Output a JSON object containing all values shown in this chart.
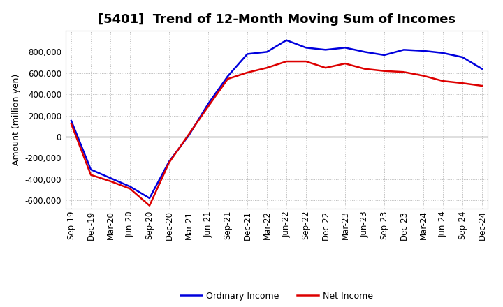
{
  "title": "[5401]  Trend of 12-Month Moving Sum of Incomes",
  "ylabel": "Amount (million yen)",
  "background_color": "#ffffff",
  "grid_color": "#bbbbbb",
  "x_labels": [
    "Sep-19",
    "Dec-19",
    "Mar-20",
    "Jun-20",
    "Sep-20",
    "Dec-20",
    "Mar-21",
    "Jun-21",
    "Sep-21",
    "Dec-21",
    "Mar-22",
    "Jun-22",
    "Sep-22",
    "Dec-22",
    "Mar-23",
    "Jun-23",
    "Sep-23",
    "Dec-23",
    "Mar-24",
    "Jun-24",
    "Sep-24",
    "Dec-24"
  ],
  "ordinary_income": [
    150000,
    -310000,
    -390000,
    -470000,
    -580000,
    -235000,
    10000,
    310000,
    570000,
    780000,
    800000,
    910000,
    840000,
    820000,
    840000,
    800000,
    770000,
    820000,
    810000,
    790000,
    750000,
    640000
  ],
  "net_income": [
    120000,
    -360000,
    -420000,
    -490000,
    -650000,
    -245000,
    20000,
    285000,
    545000,
    605000,
    650000,
    710000,
    710000,
    650000,
    690000,
    640000,
    620000,
    610000,
    575000,
    525000,
    505000,
    480000
  ],
  "ordinary_income_color": "#0000dd",
  "net_income_color": "#dd0000",
  "ylim": [
    -680000,
    1000000
  ],
  "yticks": [
    -600000,
    -400000,
    -200000,
    0,
    200000,
    400000,
    600000,
    800000
  ],
  "legend_ordinary": "Ordinary Income",
  "legend_net": "Net Income",
  "line_width": 1.8,
  "title_fontsize": 13,
  "ylabel_fontsize": 9,
  "tick_fontsize": 8.5,
  "legend_fontsize": 9
}
